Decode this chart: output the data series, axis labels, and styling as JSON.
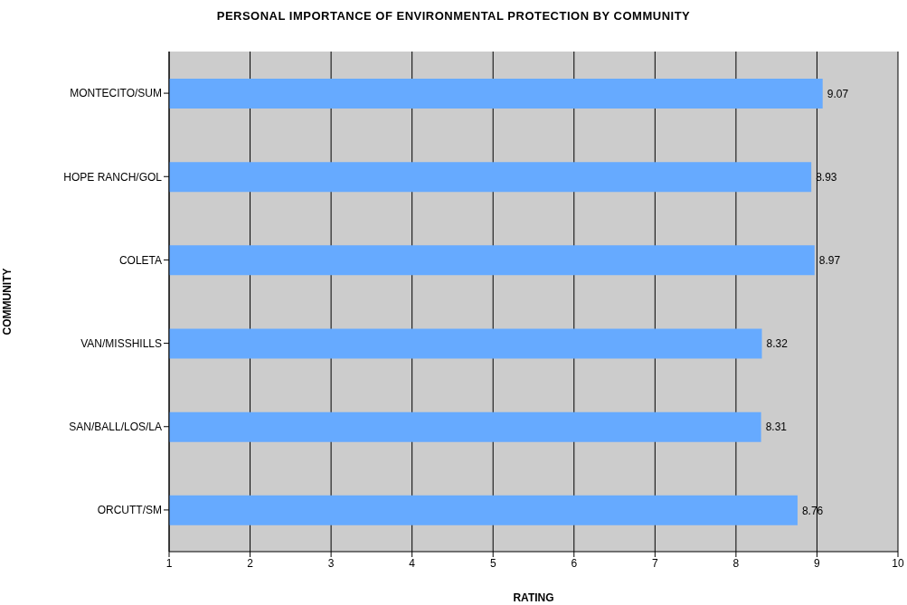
{
  "chart_data": {
    "type": "bar",
    "orientation": "horizontal",
    "title": "PERSONAL IMPORTANCE OF ENVIRONMENTAL PROTECTION BY COMMUNITY",
    "xlabel": "RATING",
    "ylabel": "COMMUNITY",
    "categories": [
      "MONTECITO/SUM",
      "HOPE RANCH/GOL",
      "COLETA",
      "VAN/MISSHILLS",
      "SAN/BALL/LOS/LA",
      "ORCUTT/SM"
    ],
    "values": [
      9.07,
      8.93,
      8.97,
      8.32,
      8.31,
      8.76
    ],
    "color": "#66aaff",
    "xlim": [
      1,
      10
    ],
    "xticks": [
      1,
      2,
      3,
      4,
      5,
      6,
      7,
      8,
      9,
      10
    ],
    "grid": "x",
    "data_labels": true,
    "legend": false
  }
}
